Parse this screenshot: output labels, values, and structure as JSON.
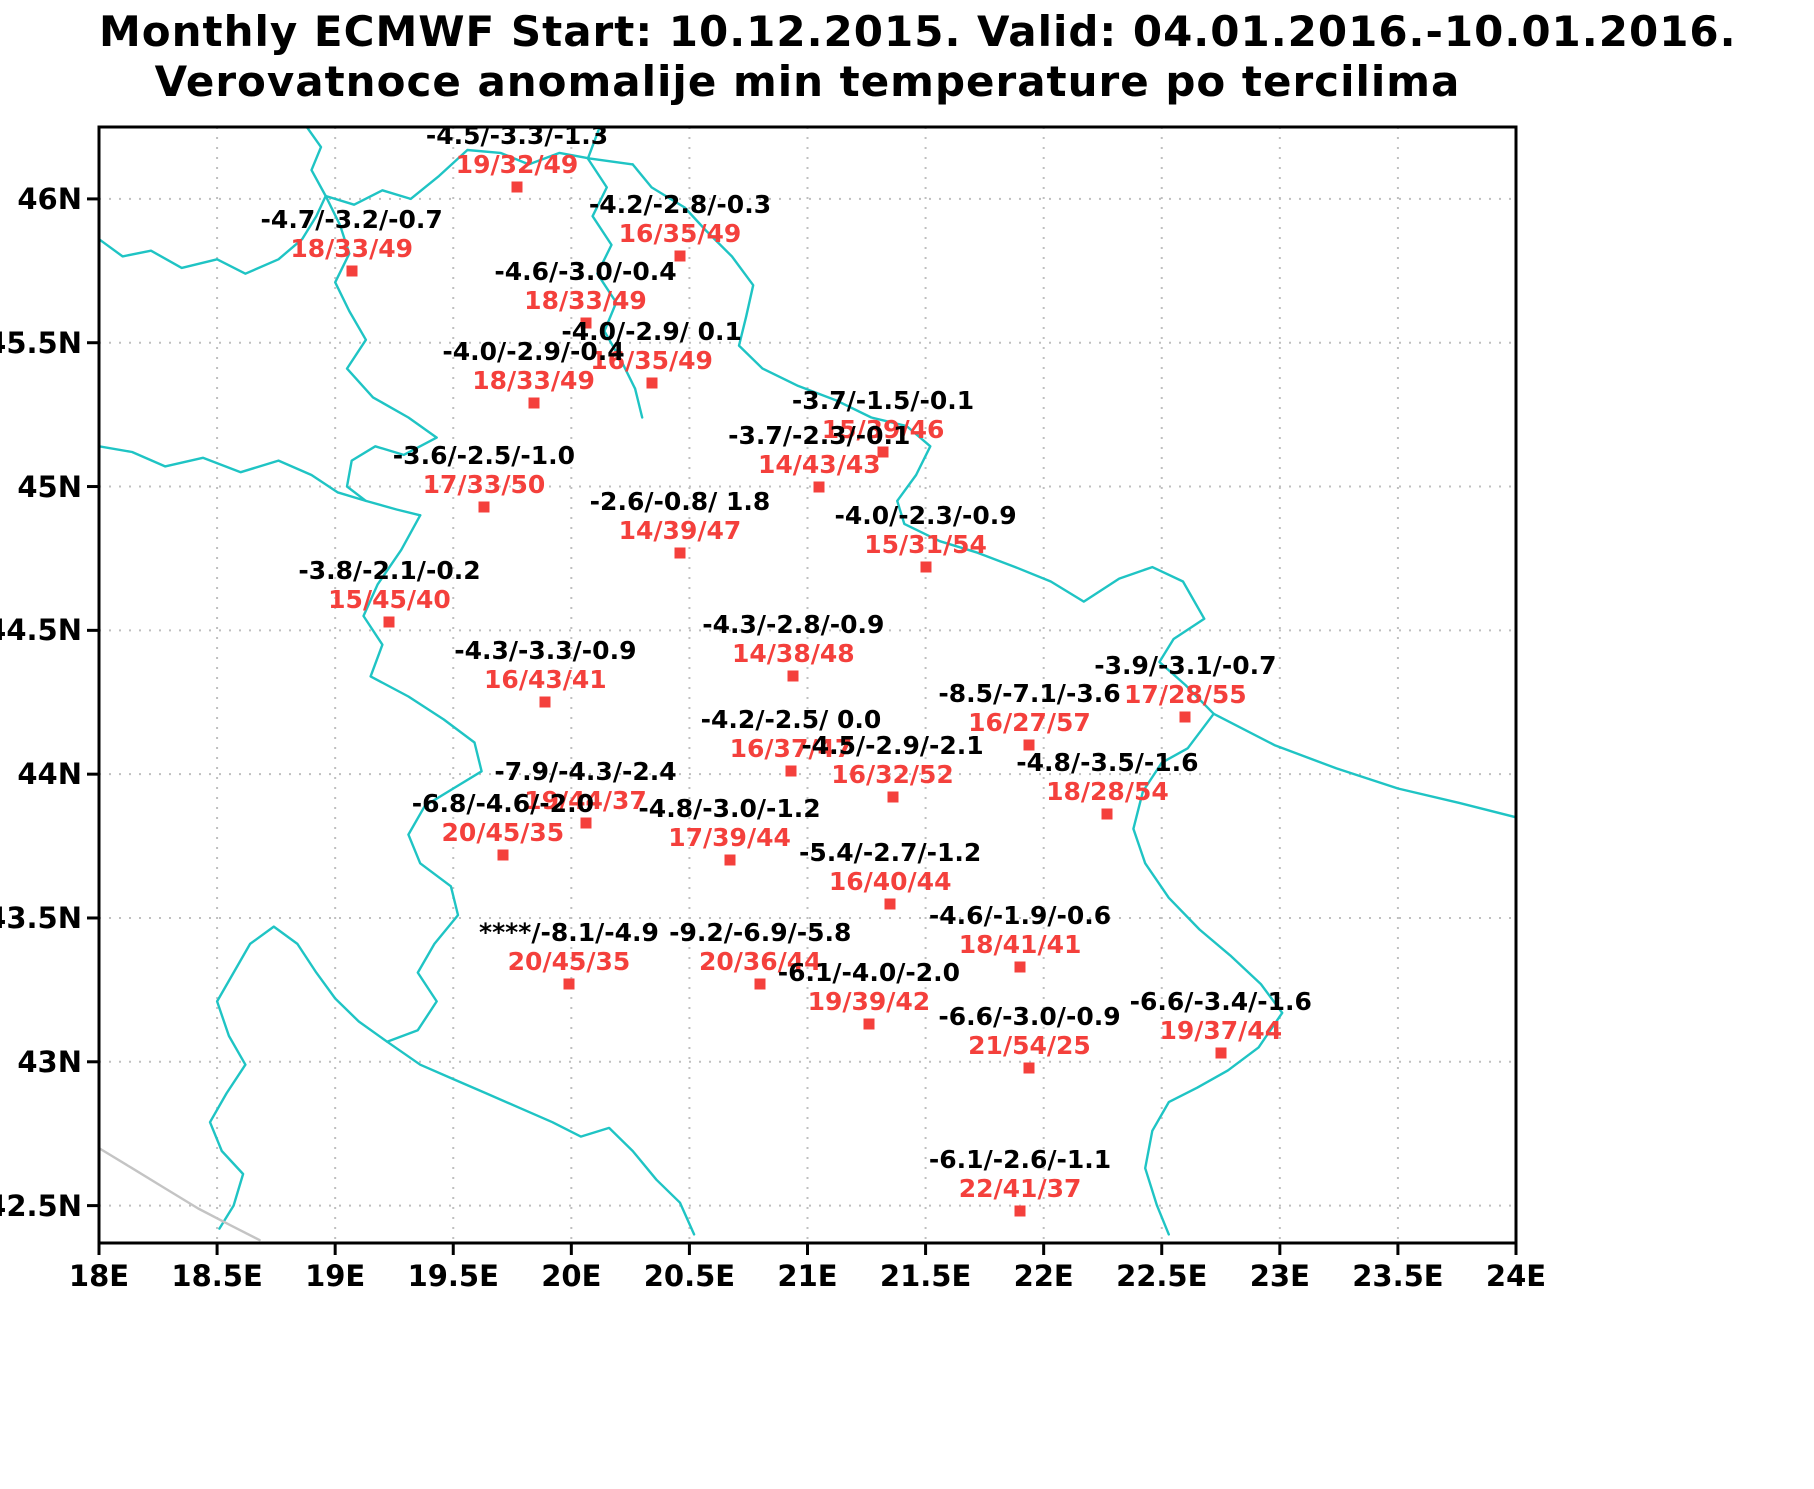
{
  "title": {
    "line1": "Monthly ECMWF Start: 10.12.2015. Valid: 04.01.2016.-10.01.2016.",
    "line2": "Verovatnoce anomalije min temperature po tercilima"
  },
  "colors": {
    "frame": "#000000",
    "grid": "#bfbfbf",
    "border": "#1fc4c4",
    "coast": "#c4c4c4",
    "station": "#f4403c",
    "anomaly_text": "#000000"
  },
  "axes": {
    "x": {
      "min": 18,
      "max": 24,
      "ticks": [
        {
          "value": 18,
          "label": "18E"
        },
        {
          "value": 18.5,
          "label": "18.5E"
        },
        {
          "value": 19,
          "label": "19E"
        },
        {
          "value": 19.5,
          "label": "19.5E"
        },
        {
          "value": 20,
          "label": "20E"
        },
        {
          "value": 20.5,
          "label": "20.5E"
        },
        {
          "value": 21,
          "label": "21E"
        },
        {
          "value": 21.5,
          "label": "21.5E"
        },
        {
          "value": 22,
          "label": "22E"
        },
        {
          "value": 22.5,
          "label": "22.5E"
        },
        {
          "value": 23,
          "label": "23E"
        },
        {
          "value": 23.5,
          "label": "23.5E"
        },
        {
          "value": 24,
          "label": "24E"
        }
      ]
    },
    "y": {
      "min": 42.37,
      "max": 46.25,
      "ticks": [
        {
          "value": 46,
          "label": "46N"
        },
        {
          "value": 45.5,
          "label": "45.5N"
        },
        {
          "value": 45,
          "label": "45N"
        },
        {
          "value": 44.5,
          "label": "44.5N"
        },
        {
          "value": 44,
          "label": "44N"
        },
        {
          "value": 43.5,
          "label": "43.5N"
        },
        {
          "value": 43,
          "label": "43N"
        },
        {
          "value": 42.5,
          "label": "42.5N"
        }
      ]
    }
  },
  "chart_data": {
    "type": "map_stations",
    "stations": [
      {
        "lon": 19.77,
        "lat": 46.04,
        "anomalies": "-4.5/-3.3/-1.3",
        "probabilities": "19/32/49"
      },
      {
        "lon": 20.46,
        "lat": 45.8,
        "anomalies": "-4.2/-2.8/-0.3",
        "probabilities": "16/35/49"
      },
      {
        "lon": 19.07,
        "lat": 45.75,
        "anomalies": "-4.7/-3.2/-0.7",
        "probabilities": "18/33/49"
      },
      {
        "lon": 20.06,
        "lat": 45.57,
        "anomalies": "-4.6/-3.0/-0.4",
        "probabilities": "18/33/49"
      },
      {
        "lon": 20.34,
        "lat": 45.36,
        "anomalies": "-4.0/-2.9/ 0.1",
        "probabilities": "16/35/49"
      },
      {
        "lon": 19.84,
        "lat": 45.29,
        "anomalies": "-4.0/-2.9/-0.4",
        "probabilities": "18/33/49"
      },
      {
        "lon": 21.32,
        "lat": 45.12,
        "anomalies": "-3.7/-1.5/-0.1",
        "probabilities": "15/39/46"
      },
      {
        "lon": 21.05,
        "lat": 45.0,
        "anomalies": "-3.7/-2.3/-0.1",
        "probabilities": "14/43/43"
      },
      {
        "lon": 19.63,
        "lat": 44.93,
        "anomalies": "-3.6/-2.5/-1.0",
        "probabilities": "17/33/50"
      },
      {
        "lon": 20.46,
        "lat": 44.77,
        "anomalies": "-2.6/-0.8/ 1.8",
        "probabilities": "14/39/47"
      },
      {
        "lon": 21.5,
        "lat": 44.72,
        "anomalies": "-4.0/-2.3/-0.9",
        "probabilities": "15/31/54"
      },
      {
        "lon": 19.23,
        "lat": 44.53,
        "anomalies": "-3.8/-2.1/-0.2",
        "probabilities": "15/45/40"
      },
      {
        "lon": 20.94,
        "lat": 44.34,
        "anomalies": "-4.3/-2.8/-0.9",
        "probabilities": "14/38/48"
      },
      {
        "lon": 19.89,
        "lat": 44.25,
        "anomalies": "-4.3/-3.3/-0.9",
        "probabilities": "16/43/41"
      },
      {
        "lon": 22.6,
        "lat": 44.2,
        "anomalies": "-3.9/-3.1/-0.7",
        "probabilities": "17/28/55"
      },
      {
        "lon": 21.94,
        "lat": 44.1,
        "anomalies": "-8.5/-7.1/-3.6",
        "probabilities": "16/27/57"
      },
      {
        "lon": 20.93,
        "lat": 44.01,
        "anomalies": "-4.2/-2.5/ 0.0",
        "probabilities": "16/37/47"
      },
      {
        "lon": 21.36,
        "lat": 43.92,
        "anomalies": "-4.5/-2.9/-2.1",
        "probabilities": "16/32/52"
      },
      {
        "lon": 22.27,
        "lat": 43.86,
        "anomalies": "-4.8/-3.5/-1.6",
        "probabilities": "18/28/54"
      },
      {
        "lon": 20.06,
        "lat": 43.83,
        "anomalies": "-7.9/-4.3/-2.4",
        "probabilities": "19/44/37"
      },
      {
        "lon": 19.71,
        "lat": 43.72,
        "anomalies": "-6.8/-4.6/-2.0",
        "probabilities": "20/45/35"
      },
      {
        "lon": 20.67,
        "lat": 43.7,
        "anomalies": "-4.8/-3.0/-1.2",
        "probabilities": "17/39/44"
      },
      {
        "lon": 21.35,
        "lat": 43.55,
        "anomalies": "-5.4/-2.7/-1.2",
        "probabilities": "16/40/44"
      },
      {
        "lon": 19.99,
        "lat": 43.27,
        "anomalies": "****/-8.1/-4.9",
        "probabilities": "20/45/35"
      },
      {
        "lon": 20.8,
        "lat": 43.27,
        "anomalies": "-9.2/-6.9/-5.8",
        "probabilities": "20/36/44"
      },
      {
        "lon": 21.9,
        "lat": 43.33,
        "anomalies": "-4.6/-1.9/-0.6",
        "probabilities": "18/41/41"
      },
      {
        "lon": 21.26,
        "lat": 43.13,
        "anomalies": "-6.1/-4.0/-2.0",
        "probabilities": "19/39/42"
      },
      {
        "lon": 21.94,
        "lat": 42.98,
        "anomalies": "-6.6/-3.0/-0.9",
        "probabilities": "21/54/25"
      },
      {
        "lon": 22.75,
        "lat": 43.03,
        "anomalies": "-6.6/-3.4/-1.6",
        "probabilities": "19/37/44"
      },
      {
        "lon": 21.9,
        "lat": 42.48,
        "anomalies": "-6.1/-2.6/-1.1",
        "probabilities": "22/41/37"
      }
    ]
  },
  "map_outlines": [
    {
      "name": "drava-border",
      "color": "border",
      "points": [
        [
          18.0,
          45.86
        ],
        [
          18.1,
          45.8
        ],
        [
          18.22,
          45.82
        ],
        [
          18.35,
          45.76
        ],
        [
          18.5,
          45.79
        ],
        [
          18.62,
          45.74
        ],
        [
          18.76,
          45.79
        ],
        [
          18.86,
          45.86
        ],
        [
          18.92,
          45.94
        ],
        [
          18.96,
          46.01
        ]
      ]
    },
    {
      "name": "hungary-border-north",
      "color": "border",
      "points": [
        [
          18.96,
          46.01
        ],
        [
          18.9,
          46.1
        ],
        [
          18.94,
          46.18
        ],
        [
          18.88,
          46.25
        ]
      ]
    },
    {
      "name": "hungary-serbia-border",
      "color": "border",
      "points": [
        [
          18.96,
          46.01
        ],
        [
          19.08,
          45.98
        ],
        [
          19.2,
          46.03
        ],
        [
          19.32,
          46.0
        ],
        [
          19.44,
          46.08
        ],
        [
          19.56,
          46.17
        ],
        [
          19.7,
          46.16
        ],
        [
          19.82,
          46.12
        ],
        [
          19.95,
          46.16
        ],
        [
          20.08,
          46.14
        ],
        [
          20.26,
          46.12
        ]
      ]
    },
    {
      "name": "romania-bulgaria-east-border",
      "color": "border",
      "points": [
        [
          20.26,
          46.12
        ],
        [
          20.34,
          46.04
        ],
        [
          20.48,
          45.97
        ],
        [
          20.57,
          45.89
        ],
        [
          20.68,
          45.8
        ],
        [
          20.77,
          45.7
        ],
        [
          20.74,
          45.59
        ],
        [
          20.71,
          45.49
        ],
        [
          20.81,
          45.41
        ],
        [
          20.96,
          45.35
        ],
        [
          21.12,
          45.3
        ],
        [
          21.27,
          45.24
        ],
        [
          21.42,
          45.21
        ],
        [
          21.52,
          45.14
        ],
        [
          21.46,
          45.04
        ],
        [
          21.38,
          44.95
        ],
        [
          21.41,
          44.87
        ],
        [
          21.56,
          44.81
        ],
        [
          21.72,
          44.77
        ],
        [
          21.88,
          44.72
        ],
        [
          22.03,
          44.67
        ],
        [
          22.17,
          44.6
        ],
        [
          22.32,
          44.68
        ],
        [
          22.46,
          44.72
        ],
        [
          22.59,
          44.67
        ],
        [
          22.68,
          44.54
        ],
        [
          22.55,
          44.47
        ],
        [
          22.49,
          44.39
        ],
        [
          22.6,
          44.31
        ],
        [
          22.72,
          44.21
        ],
        [
          22.61,
          44.09
        ],
        [
          22.5,
          44.04
        ],
        [
          22.42,
          43.94
        ],
        [
          22.38,
          43.81
        ],
        [
          22.43,
          43.69
        ],
        [
          22.53,
          43.57
        ],
        [
          22.66,
          43.46
        ],
        [
          22.79,
          43.37
        ],
        [
          22.92,
          43.27
        ],
        [
          23.01,
          43.17
        ],
        [
          22.91,
          43.05
        ],
        [
          22.78,
          42.97
        ],
        [
          22.65,
          42.91
        ],
        [
          22.53,
          42.86
        ],
        [
          22.46,
          42.76
        ],
        [
          22.43,
          42.63
        ],
        [
          22.48,
          42.5
        ],
        [
          22.53,
          42.4
        ]
      ]
    },
    {
      "name": "croatia-serbia-danube",
      "color": "border",
      "points": [
        [
          18.96,
          46.01
        ],
        [
          19.02,
          45.91
        ],
        [
          19.06,
          45.81
        ],
        [
          19.0,
          45.71
        ],
        [
          19.06,
          45.61
        ],
        [
          19.13,
          45.51
        ],
        [
          19.05,
          45.41
        ],
        [
          19.16,
          45.31
        ],
        [
          19.31,
          45.24
        ],
        [
          19.43,
          45.17
        ],
        [
          19.29,
          45.11
        ],
        [
          19.17,
          45.14
        ],
        [
          19.07,
          45.09
        ],
        [
          19.05,
          45.0
        ],
        [
          19.13,
          44.95
        ],
        [
          19.26,
          44.92
        ],
        [
          19.36,
          44.9
        ]
      ]
    },
    {
      "name": "sava-border",
      "color": "border",
      "points": [
        [
          18.0,
          45.14
        ],
        [
          18.14,
          45.12
        ],
        [
          18.28,
          45.07
        ],
        [
          18.44,
          45.1
        ],
        [
          18.6,
          45.05
        ],
        [
          18.76,
          45.09
        ],
        [
          18.9,
          45.04
        ],
        [
          19.01,
          44.98
        ],
        [
          19.13,
          44.95
        ]
      ]
    },
    {
      "name": "drina-border",
      "color": "border",
      "points": [
        [
          19.36,
          44.9
        ],
        [
          19.28,
          44.78
        ],
        [
          19.18,
          44.66
        ],
        [
          19.12,
          44.55
        ],
        [
          19.2,
          44.45
        ],
        [
          19.15,
          44.34
        ],
        [
          19.31,
          44.27
        ],
        [
          19.46,
          44.19
        ],
        [
          19.59,
          44.11
        ],
        [
          19.62,
          44.01
        ],
        [
          19.5,
          43.95
        ],
        [
          19.38,
          43.89
        ],
        [
          19.31,
          43.79
        ],
        [
          19.36,
          43.69
        ],
        [
          19.49,
          43.61
        ],
        [
          19.52,
          43.51
        ],
        [
          19.42,
          43.41
        ],
        [
          19.35,
          43.31
        ],
        [
          19.43,
          43.21
        ],
        [
          19.35,
          43.11
        ],
        [
          19.22,
          43.07
        ],
        [
          19.1,
          43.14
        ],
        [
          19.0,
          43.22
        ],
        [
          18.92,
          43.31
        ],
        [
          18.84,
          43.41
        ],
        [
          18.74,
          43.47
        ],
        [
          18.64,
          43.41
        ],
        [
          18.57,
          43.31
        ],
        [
          18.5,
          43.21
        ],
        [
          18.55,
          43.09
        ],
        [
          18.62,
          42.99
        ],
        [
          18.54,
          42.89
        ],
        [
          18.47,
          42.79
        ],
        [
          18.52,
          42.69
        ],
        [
          18.61,
          42.61
        ],
        [
          18.57,
          42.5
        ],
        [
          18.51,
          42.42
        ]
      ]
    },
    {
      "name": "montenegro-border",
      "color": "border",
      "points": [
        [
          19.22,
          43.07
        ],
        [
          19.36,
          42.99
        ],
        [
          19.5,
          42.94
        ],
        [
          19.64,
          42.89
        ],
        [
          19.78,
          42.84
        ],
        [
          19.92,
          42.79
        ],
        [
          20.04,
          42.74
        ],
        [
          20.16,
          42.77
        ],
        [
          20.26,
          42.69
        ],
        [
          20.36,
          42.59
        ],
        [
          20.46,
          42.51
        ],
        [
          20.52,
          42.4
        ]
      ]
    },
    {
      "name": "tisa-river",
      "color": "border",
      "points": [
        [
          20.12,
          46.25
        ],
        [
          20.07,
          46.14
        ],
        [
          20.15,
          46.04
        ],
        [
          20.09,
          45.94
        ],
        [
          20.17,
          45.84
        ],
        [
          20.11,
          45.74
        ],
        [
          20.19,
          45.64
        ],
        [
          20.14,
          45.54
        ],
        [
          20.21,
          45.44
        ],
        [
          20.27,
          45.34
        ],
        [
          20.3,
          45.24
        ]
      ]
    },
    {
      "name": "danube-east",
      "color": "border",
      "points": [
        [
          22.72,
          44.21
        ],
        [
          22.98,
          44.1
        ],
        [
          23.24,
          44.02
        ],
        [
          23.5,
          43.95
        ],
        [
          23.76,
          43.9
        ],
        [
          24.0,
          43.85
        ]
      ]
    },
    {
      "name": "adriatic-coast",
      "color": "coast",
      "points": [
        [
          18.0,
          42.7
        ],
        [
          18.14,
          42.63
        ],
        [
          18.28,
          42.56
        ],
        [
          18.42,
          42.49
        ],
        [
          18.56,
          42.43
        ],
        [
          18.68,
          42.38
        ]
      ]
    }
  ]
}
